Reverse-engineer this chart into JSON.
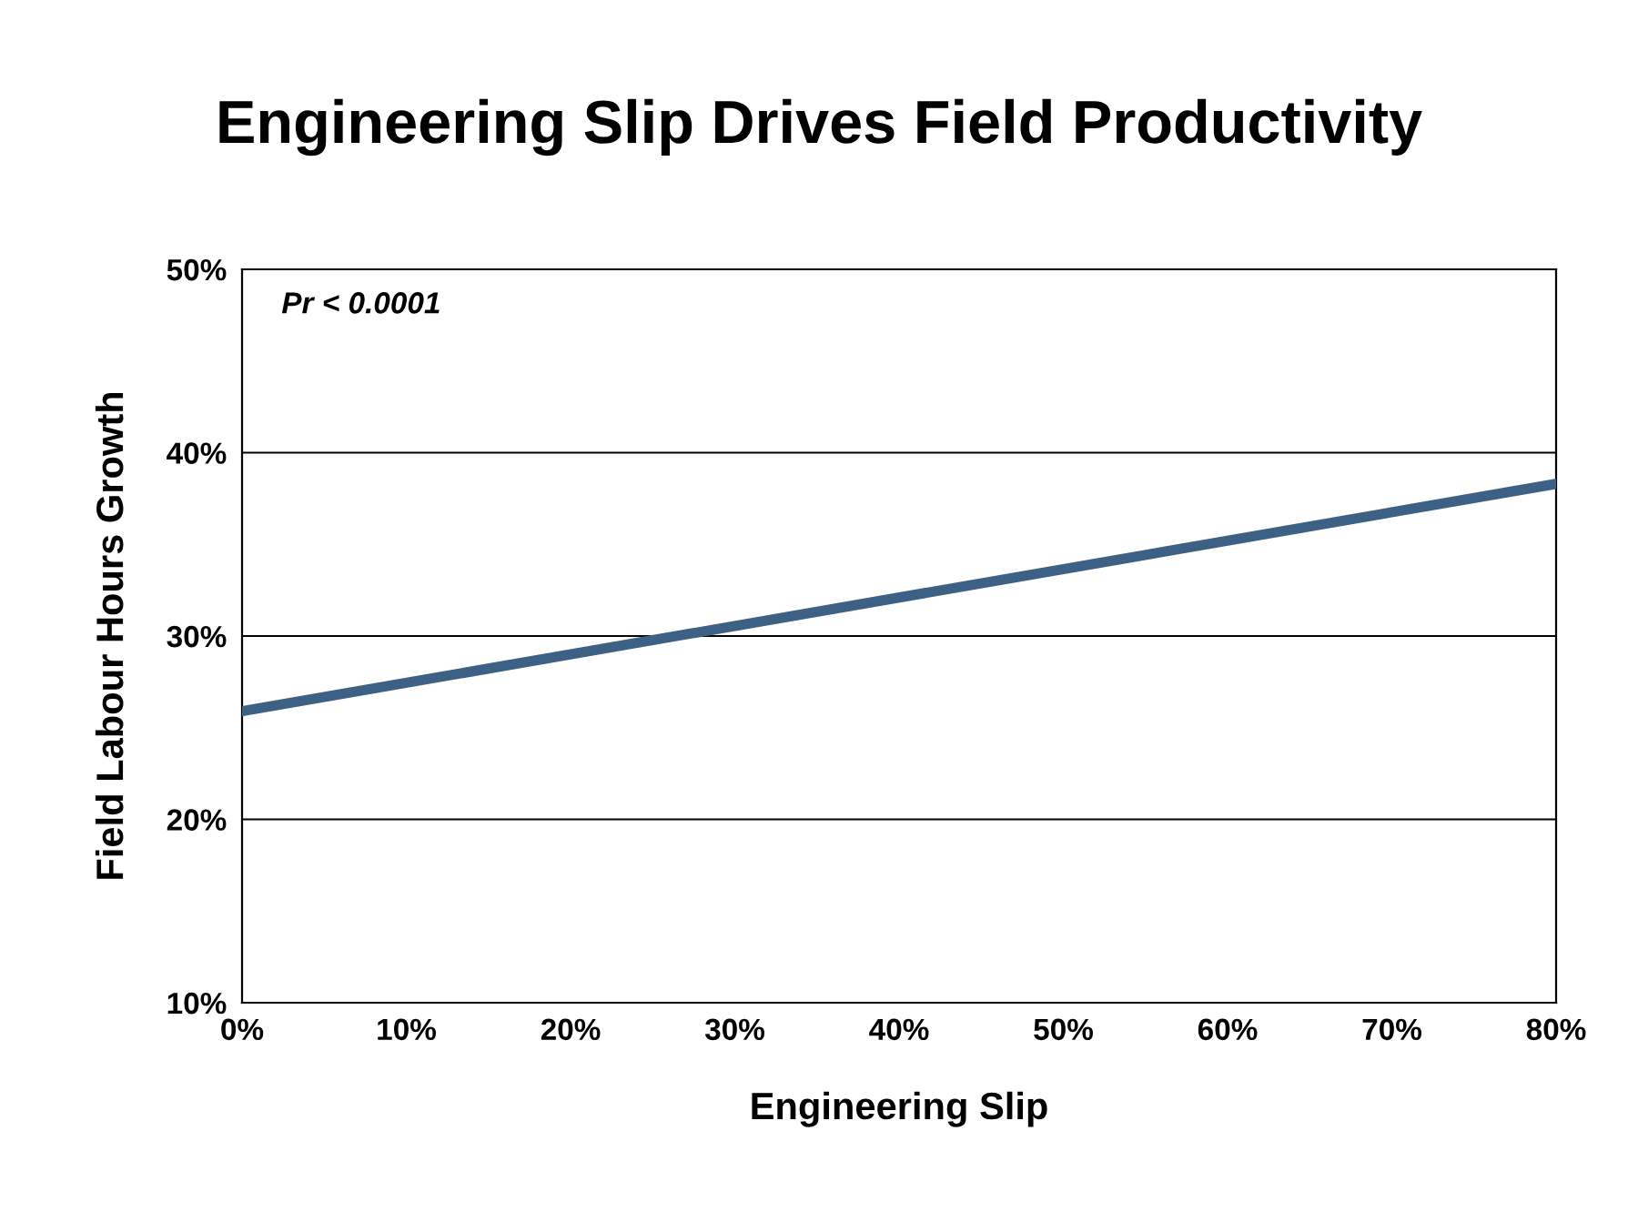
{
  "chart_data": {
    "type": "line",
    "title": "Engineering Slip Drives Field Productivity",
    "xlabel": "Engineering Slip",
    "ylabel": "Field Labour Hours Growth",
    "annotations": [
      "Pr < 0.0001"
    ],
    "x": [
      0,
      80
    ],
    "series": [
      {
        "color": "#3d6185",
        "values": [
          25.9,
          38.3
        ]
      }
    ],
    "xlim": [
      0,
      80
    ],
    "ylim": [
      10,
      50
    ],
    "xticks": [
      {
        "value": 0,
        "label": "0%"
      },
      {
        "value": 10,
        "label": "10%"
      },
      {
        "value": 20,
        "label": "20%"
      },
      {
        "value": 30,
        "label": "30%"
      },
      {
        "value": 40,
        "label": "40%"
      },
      {
        "value": 50,
        "label": "50%"
      },
      {
        "value": 60,
        "label": "60%"
      },
      {
        "value": 70,
        "label": "70%"
      },
      {
        "value": 80,
        "label": "80%"
      }
    ],
    "yticks": [
      {
        "value": 10,
        "label": "10%"
      },
      {
        "value": 20,
        "label": "20%"
      },
      {
        "value": 30,
        "label": "30%"
      },
      {
        "value": 40,
        "label": "40%"
      },
      {
        "value": 50,
        "label": "50%"
      }
    ],
    "grid": "y",
    "marker": "none",
    "line_style": "solid"
  }
}
